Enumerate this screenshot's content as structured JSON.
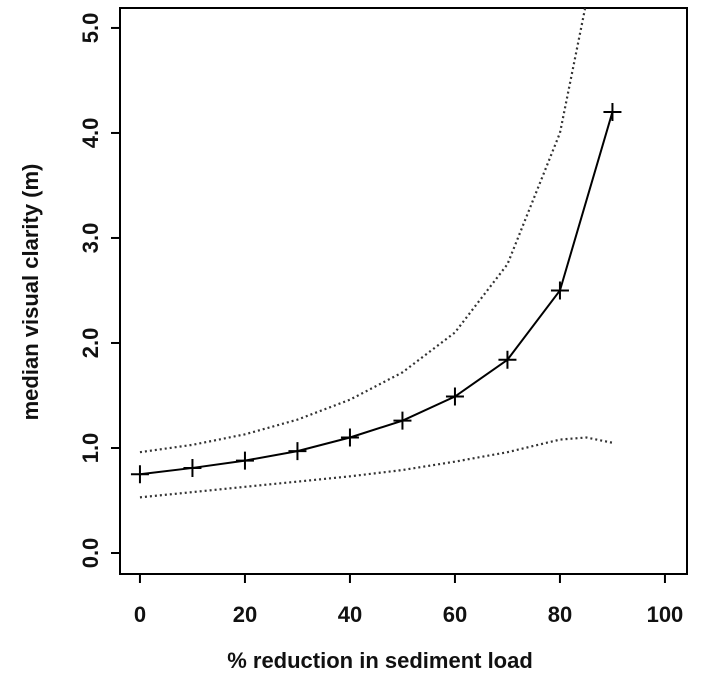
{
  "chart_data": {
    "type": "line",
    "xlabel": "% reduction in sediment load",
    "ylabel": "median visual clarity (m)",
    "xlim": [
      -3.8,
      104.2
    ],
    "ylim": [
      -0.2,
      5.19
    ],
    "xticks": [
      0,
      20,
      40,
      60,
      80,
      100
    ],
    "yticks": [
      {
        "value": 0,
        "label": "0.0"
      },
      {
        "value": 1,
        "label": "1.0"
      },
      {
        "value": 2,
        "label": "2.0"
      },
      {
        "value": 3,
        "label": "3.0"
      },
      {
        "value": 4,
        "label": "4.0"
      },
      {
        "value": 5,
        "label": "5.0"
      }
    ],
    "series": [
      {
        "color": "#000000",
        "line_style": "solid",
        "marker": "+",
        "x": [
          0,
          10,
          20,
          30,
          40,
          50,
          60,
          70,
          80,
          90
        ],
        "values": [
          0.75,
          0.81,
          0.88,
          0.97,
          1.1,
          1.26,
          1.49,
          1.84,
          2.5,
          4.2
        ]
      },
      {
        "color": "#333333",
        "line_style": "dotted",
        "x": [
          0,
          10,
          20,
          30,
          40,
          50,
          60,
          70,
          80,
          84.8
        ],
        "values": [
          0.96,
          1.03,
          1.13,
          1.27,
          1.46,
          1.72,
          2.1,
          2.75,
          4.0,
          5.19
        ]
      },
      {
        "color": "#333333",
        "line_style": "dotted",
        "x": [
          0,
          10,
          20,
          30,
          40,
          50,
          60,
          70,
          80,
          85,
          90
        ],
        "values": [
          0.53,
          0.58,
          0.63,
          0.68,
          0.73,
          0.79,
          0.87,
          0.96,
          1.08,
          1.1,
          1.05
        ]
      }
    ]
  }
}
